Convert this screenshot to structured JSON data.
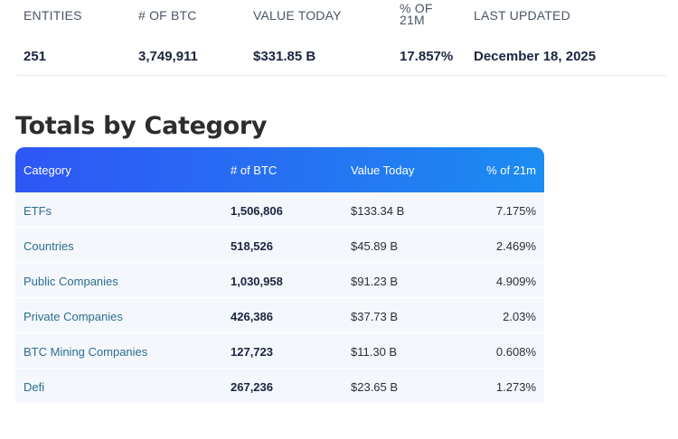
{
  "summary": {
    "entities_label": "ENTITIES",
    "btc_label": "# OF BTC",
    "value_label": "VALUE TODAY",
    "pct_label": "% OF 21M",
    "updated_label": "LAST UPDATED",
    "entities": "251",
    "btc": "3,749,911",
    "value": "$331.85 B",
    "pct": "17.857%",
    "updated": "December 18, 2025"
  },
  "heading": "Totals by Category",
  "table": {
    "columns": [
      "Category",
      "# of BTC",
      "Value Today",
      "% of 21m"
    ],
    "header_gradient": [
      "#2e56f5",
      "#1b8cf2"
    ],
    "rows": [
      {
        "category": "ETFs",
        "btc": "1,506,806",
        "value": "$133.34 B",
        "pct": "7.175%"
      },
      {
        "category": "Countries",
        "btc": "518,526",
        "value": "$45.89 B",
        "pct": "2.469%"
      },
      {
        "category": "Public Companies",
        "btc": "1,030,958",
        "value": "$91.23 B",
        "pct": "4.909%"
      },
      {
        "category": "Private Companies",
        "btc": "426,386",
        "value": "$37.73 B",
        "pct": "2.03%"
      },
      {
        "category": "BTC Mining Companies",
        "btc": "127,723",
        "value": "$11.30 B",
        "pct": "0.608%"
      },
      {
        "category": "Defi",
        "btc": "267,236",
        "value": "$23.65 B",
        "pct": "1.273%"
      }
    ]
  }
}
